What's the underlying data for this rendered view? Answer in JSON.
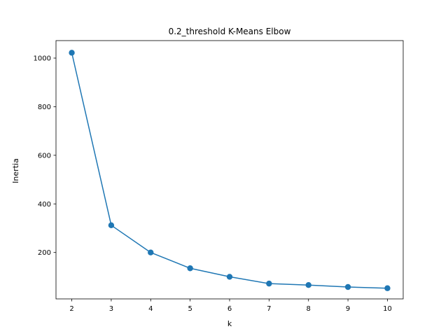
{
  "chart_data": {
    "type": "line",
    "title": "0.2_threshold K-Means Elbow",
    "xlabel": "k",
    "ylabel": "Inertia",
    "xlim": [
      1.6,
      10.4
    ],
    "ylim": [
      9,
      1072
    ],
    "xticks": [
      2,
      3,
      4,
      5,
      6,
      7,
      8,
      9,
      10
    ],
    "yticks": [
      200,
      400,
      600,
      800,
      1000
    ],
    "grid": false,
    "color": "#1f77b4",
    "marker": "circle",
    "series": [
      {
        "x": [
          2,
          3,
          4,
          5,
          6,
          7,
          8,
          9,
          10
        ],
        "y": [
          1022,
          312,
          200,
          135,
          100,
          72,
          66,
          58,
          53
        ]
      }
    ]
  }
}
